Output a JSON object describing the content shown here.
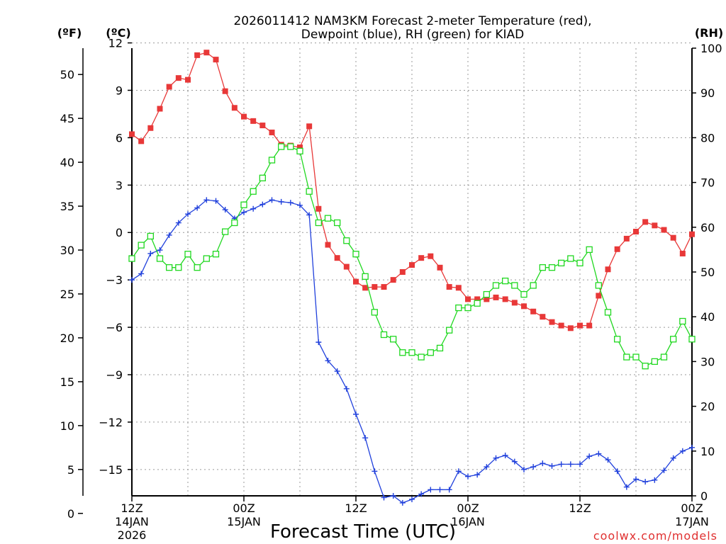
{
  "chart_data": {
    "type": "line",
    "title": "2026011412 NAM3KM Forecast 2-meter Temperature (red),",
    "title_line2": "Dewpoint (blue), RH (green) for KIAD",
    "xlabel": "Forecast Time (UTC)",
    "left_unit_f": "(ºF)",
    "left_unit_c": "(ºC)",
    "right_unit": "(RH)",
    "credit": "coolwx.com/models",
    "x_range_hours": [
      0,
      60
    ],
    "c_range": [
      -16.6667,
      11.6667
    ],
    "c_ticks": [
      "12",
      "9",
      "6",
      "3",
      "0",
      "−3",
      "−6",
      "−9",
      "−12",
      "−15"
    ],
    "c_tick_values": [
      12,
      9,
      6,
      3,
      0,
      -3,
      -6,
      -9,
      -12,
      -15
    ],
    "f_ticks": [
      "50",
      "45",
      "40",
      "35",
      "30",
      "25",
      "20",
      "15",
      "10",
      "5",
      "0"
    ],
    "f_tick_values": [
      50,
      45,
      40,
      35,
      30,
      25,
      20,
      15,
      10,
      5,
      0
    ],
    "rh_range": [
      0,
      100
    ],
    "rh_ticks": [
      "100",
      "90",
      "80",
      "70",
      "60",
      "50",
      "40",
      "30",
      "20",
      "10",
      "0"
    ],
    "rh_tick_values": [
      100,
      90,
      80,
      70,
      60,
      50,
      40,
      30,
      20,
      10,
      0
    ],
    "x_ticks": [
      {
        "hour": 0,
        "line1": "12Z",
        "line2": "14JAN",
        "line3": "2026"
      },
      {
        "hour": 12,
        "line1": "00Z",
        "line2": "15JAN",
        "line3": ""
      },
      {
        "hour": 24,
        "line1": "12Z",
        "line2": "",
        "line3": ""
      },
      {
        "hour": 36,
        "line1": "00Z",
        "line2": "16JAN",
        "line3": ""
      },
      {
        "hour": 48,
        "line1": "12Z",
        "line2": "",
        "line3": ""
      },
      {
        "hour": 60,
        "line1": "00Z",
        "line2": "17JAN",
        "line3": ""
      }
    ],
    "series": [
      {
        "name": "Temperature",
        "units": "degF",
        "color": "#e83838",
        "marker": "filled-square",
        "values": [
          43.2,
          42.4,
          43.9,
          46.1,
          48.6,
          49.6,
          49.4,
          52.2,
          52.5,
          51.7,
          48.1,
          46.2,
          45.2,
          44.7,
          44.2,
          43.4,
          42.0,
          41.9,
          41.7,
          44.1,
          34.7,
          30.6,
          29.1,
          28.1,
          26.4,
          25.7,
          25.8,
          25.8,
          26.6,
          27.5,
          28.3,
          29.1,
          29.3,
          28.0,
          25.8,
          25.7,
          24.4,
          24.4,
          24.4,
          24.6,
          24.4,
          24.0,
          23.6,
          23.0,
          22.4,
          21.8,
          21.4,
          21.1,
          21.4,
          21.4,
          24.8,
          27.8,
          30.1,
          31.3,
          32.1,
          33.2,
          32.8,
          32.3,
          31.4,
          29.6,
          31.8
        ]
      },
      {
        "name": "Dewpoint",
        "units": "degF",
        "color": "#2040dc",
        "marker": "plus",
        "values": [
          26.6,
          27.3,
          29.6,
          30.0,
          31.7,
          33.1,
          34.1,
          34.8,
          35.7,
          35.6,
          34.6,
          33.6,
          34.3,
          34.7,
          35.2,
          35.7,
          35.5,
          35.4,
          35.1,
          34.0,
          19.5,
          17.4,
          16.2,
          14.2,
          11.3,
          8.6,
          4.8,
          1.8,
          2.0,
          1.2,
          1.6,
          2.2,
          2.7,
          2.7,
          2.7,
          4.8,
          4.2,
          4.4,
          5.3,
          6.3,
          6.6,
          5.9,
          5.0,
          5.3,
          5.7,
          5.4,
          5.6,
          5.6,
          5.6,
          6.5,
          6.8,
          6.1,
          4.8,
          3.0,
          3.9,
          3.6,
          3.8,
          4.9,
          6.3,
          7.1,
          7.5
        ]
      },
      {
        "name": "RH",
        "units": "percent",
        "color": "#20d820",
        "marker": "open-square",
        "values": [
          53,
          56,
          58,
          53,
          51,
          51,
          54,
          51,
          53,
          54,
          59,
          61,
          65,
          68,
          71,
          75,
          78,
          78,
          77,
          68,
          61,
          62,
          61,
          57,
          54,
          49,
          41,
          36,
          35,
          32,
          32,
          31,
          32,
          33,
          37,
          42,
          42,
          43,
          45,
          47,
          48,
          47,
          45,
          47,
          51,
          51,
          52,
          53,
          52,
          55,
          47,
          41,
          35,
          31,
          31,
          29,
          30,
          31,
          35,
          39,
          35
        ]
      }
    ]
  }
}
